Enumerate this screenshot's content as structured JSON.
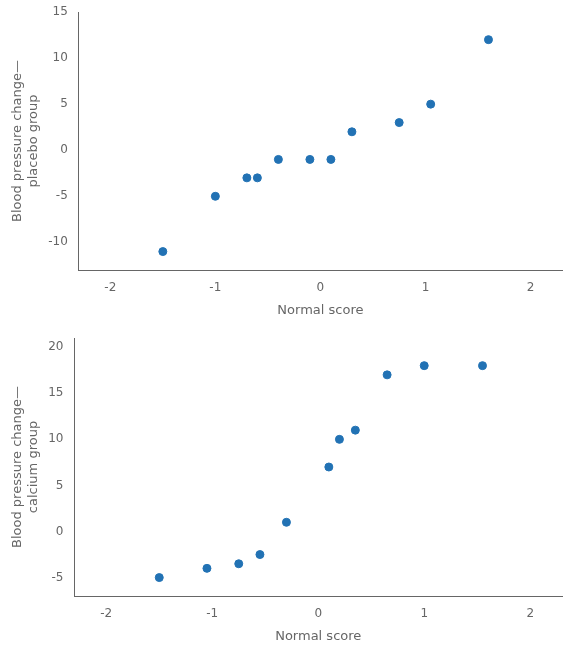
{
  "chart_data": [
    {
      "type": "scatter",
      "x": [
        -1.5,
        -1.0,
        -0.7,
        -0.6,
        -0.4,
        -0.1,
        0.1,
        0.3,
        0.75,
        1.05,
        1.6
      ],
      "values": [
        -11,
        -5,
        -3,
        -3,
        -1,
        -1,
        -1,
        2,
        3,
        5,
        12
      ],
      "xlabel": "Normal score",
      "ylabel": "Blood pressure change—\nplacebo group",
      "color": "#2272B4",
      "marker": "circle",
      "xlim": [
        -2.3,
        2.3
      ],
      "ylim": [
        -13,
        15
      ],
      "xticks": [
        -2,
        -1,
        0,
        1,
        2
      ],
      "yticks": [
        -10,
        -5,
        0,
        5,
        10,
        15
      ],
      "grid": false
    },
    {
      "type": "scatter",
      "x": [
        -1.5,
        -1.05,
        -0.75,
        -0.55,
        -0.3,
        0.1,
        0.2,
        0.35,
        0.65,
        1.0,
        1.55
      ],
      "values": [
        -5,
        -4,
        -3.5,
        -2.5,
        1,
        7,
        10,
        11,
        17,
        18,
        18
      ],
      "xlabel": "Normal score",
      "ylabel": "Blood pressure change—\ncalcium group",
      "color": "#2272B4",
      "marker": "circle",
      "xlim": [
        -2.3,
        2.3
      ],
      "ylim": [
        -7,
        21
      ],
      "xticks": [
        -2,
        -1,
        0,
        1,
        2
      ],
      "yticks": [
        -5,
        0,
        5,
        10,
        15,
        20
      ],
      "grid": false
    }
  ]
}
